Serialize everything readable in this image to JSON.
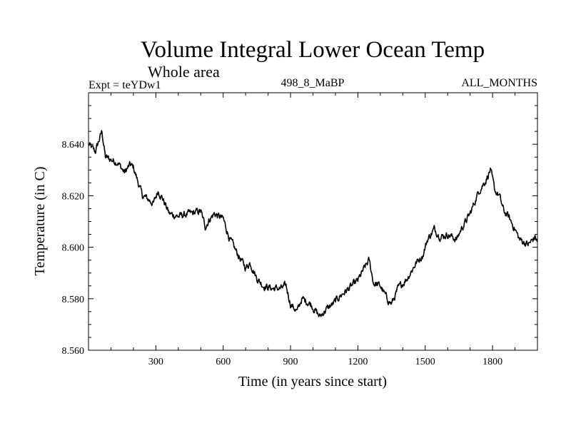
{
  "chart_data": {
    "type": "line",
    "title": "Volume Integral Lower Ocean Temp",
    "subtitle": "Whole area",
    "header_left": "Expt = teYDw1",
    "header_center": "498_8_MaBP",
    "header_right": "ALL_MONTHS",
    "xlabel": "Time (in years since start)",
    "ylabel": "Temperature (in C)",
    "xlim": [
      0,
      2000
    ],
    "ylim": [
      8.56,
      8.66
    ],
    "x_ticks": [
      300,
      600,
      900,
      1200,
      1500,
      1800
    ],
    "x_tick_labels": [
      "300",
      "600",
      "900",
      "1200",
      "1500",
      "1800"
    ],
    "y_ticks": [
      8.56,
      8.58,
      8.6,
      8.62,
      8.64
    ],
    "y_tick_labels": [
      "8.560",
      "8.580",
      "8.600",
      "8.620",
      "8.640"
    ],
    "grid": false,
    "line_color": "#000000",
    "series": [
      {
        "name": "Temperature",
        "x": [
          0,
          30,
          45,
          60,
          75,
          100,
          130,
          160,
          185,
          200,
          240,
          260,
          290,
          310,
          330,
          360,
          400,
          450,
          500,
          520,
          540,
          560,
          600,
          630,
          660,
          700,
          720,
          750,
          780,
          820,
          860,
          880,
          900,
          930,
          950,
          990,
          1030,
          1060,
          1090,
          1120,
          1160,
          1200,
          1230,
          1250,
          1270,
          1300,
          1330,
          1350,
          1380,
          1420,
          1460,
          1490,
          1510,
          1540,
          1570,
          1600,
          1640,
          1660,
          1700,
          1740,
          1770,
          1790,
          1810,
          1830,
          1850,
          1870,
          1900,
          1920,
          1960,
          1990,
          2000
        ],
        "y": [
          8.64,
          8.637,
          8.641,
          8.645,
          8.635,
          8.634,
          8.633,
          8.629,
          8.632,
          8.631,
          8.62,
          8.619,
          8.617,
          8.622,
          8.619,
          8.613,
          8.612,
          8.613,
          8.614,
          8.608,
          8.611,
          8.613,
          8.611,
          8.603,
          8.598,
          8.592,
          8.594,
          8.588,
          8.585,
          8.584,
          8.584,
          8.585,
          8.578,
          8.575,
          8.58,
          8.578,
          8.573,
          8.576,
          8.578,
          8.581,
          8.584,
          8.587,
          8.592,
          8.595,
          8.586,
          8.585,
          8.58,
          8.578,
          8.584,
          8.588,
          8.594,
          8.597,
          8.603,
          8.607,
          8.604,
          8.605,
          8.603,
          8.607,
          8.613,
          8.622,
          8.626,
          8.63,
          8.622,
          8.62,
          8.614,
          8.612,
          8.607,
          8.603,
          8.601,
          8.604,
          8.602
        ]
      }
    ]
  }
}
